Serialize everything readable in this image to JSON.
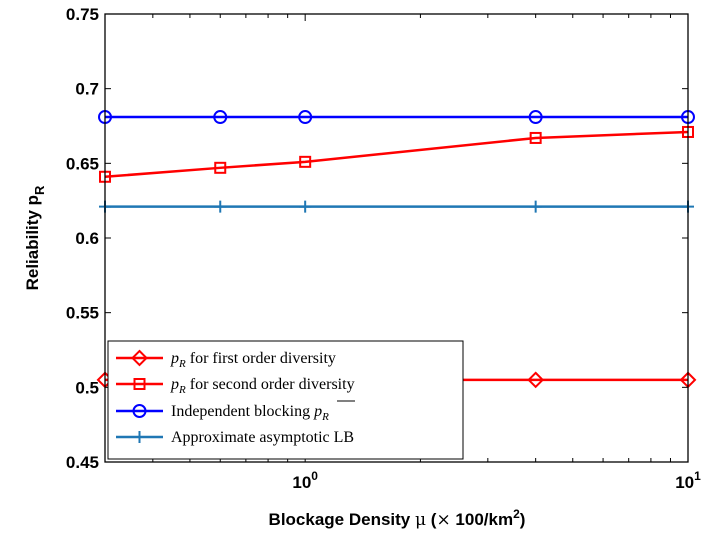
{
  "chart_data": {
    "type": "line",
    "xlabel": "Blockage Density μ (× 100/km²)",
    "ylabel": "Reliability p_R",
    "x_scale": "log",
    "xlim": [
      0.3,
      10
    ],
    "ylim": [
      0.45,
      0.75
    ],
    "x_ticks": [
      {
        "value": 1,
        "base": "10",
        "exp": "0"
      },
      {
        "value": 10,
        "base": "10",
        "exp": "1"
      }
    ],
    "y_ticks": [
      "0.45",
      "0.5",
      "0.55",
      "0.6",
      "0.65",
      "0.7",
      "0.75"
    ],
    "grid": false,
    "legend_position": "bottom-left",
    "series": [
      {
        "name": "p_R for first order diversity",
        "color": "#ff0000",
        "marker": "diamond",
        "x": [
          0.3,
          4,
          10
        ],
        "y": [
          0.505,
          0.505,
          0.505
        ]
      },
      {
        "name": "p_R for second order diversity",
        "color": "#ff0000",
        "marker": "square",
        "x": [
          0.3,
          0.6,
          1,
          4,
          10
        ],
        "y": [
          0.641,
          0.647,
          0.651,
          0.667,
          0.671
        ]
      },
      {
        "name": "Independent blocking p_R (overlined)",
        "color": "#0000ff",
        "marker": "circle",
        "x": [
          0.3,
          0.6,
          1,
          4,
          10
        ],
        "y": [
          0.681,
          0.681,
          0.681,
          0.681,
          0.681
        ]
      },
      {
        "name": "Approximate asymptotic LB",
        "color": "#1f77b4",
        "marker": "plus",
        "x": [
          0.3,
          0.6,
          1,
          4,
          10
        ],
        "y": [
          0.621,
          0.621,
          0.621,
          0.621,
          0.621
        ]
      }
    ]
  }
}
